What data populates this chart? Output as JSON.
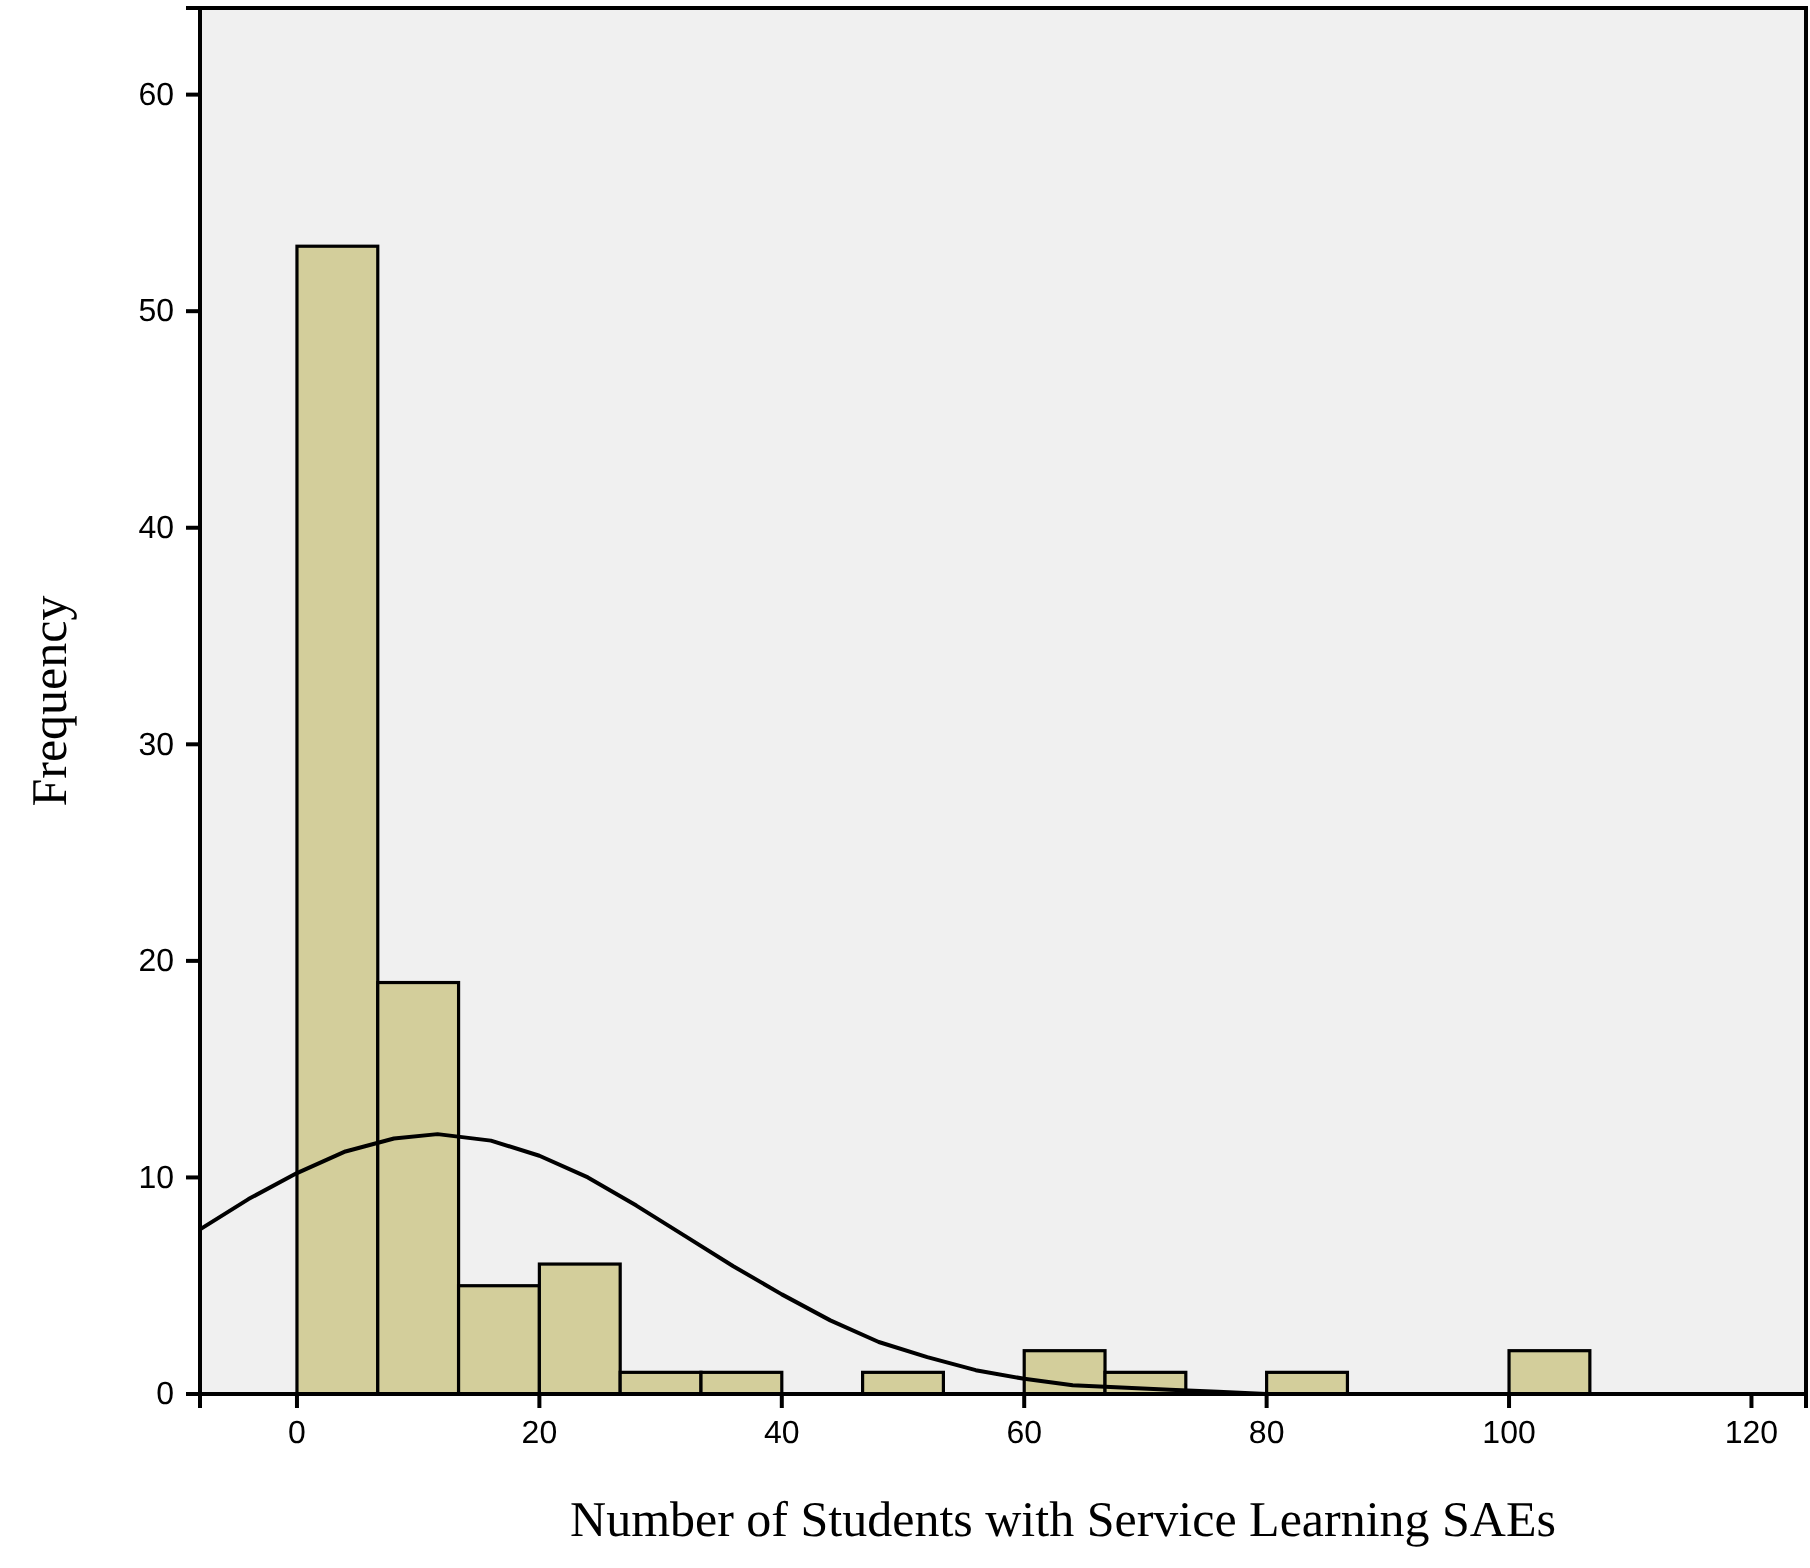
{
  "chart_data": {
    "type": "histogram",
    "xlabel": "Number of Students with Service Learning SAEs",
    "ylabel": "Frequency",
    "bins": [
      0,
      6.667,
      13.333,
      20,
      26.667,
      33.333,
      40,
      46.667,
      53.333,
      60,
      66.667,
      73.333,
      80,
      86.667,
      93.333,
      100,
      106.667
    ],
    "values": [
      53,
      19,
      5,
      6,
      1,
      1,
      0,
      1,
      0,
      2,
      1,
      0,
      1,
      0,
      0,
      2
    ],
    "color": "#d3ce9b",
    "series": [
      {
        "type": "line",
        "color": "#000000",
        "x": [
          -8,
          -4,
          0,
          4,
          8,
          11.6,
          16,
          20,
          24,
          28,
          32,
          36,
          40,
          44,
          48,
          52,
          56,
          60,
          64,
          68,
          72,
          76,
          80,
          84,
          88,
          100,
          124.5
        ],
        "values": [
          7.6,
          9,
          10.2,
          11.2,
          11.8,
          12,
          11.7,
          11,
          10,
          8.7,
          7.3,
          5.9,
          4.6,
          3.4,
          2.4,
          1.7,
          1.1,
          0.7,
          0.4,
          0.3,
          0.2,
          0.1,
          0,
          0,
          0,
          0,
          0
        ]
      }
    ],
    "xlim": [
      -8,
      124.5
    ],
    "ylim": [
      0,
      64
    ],
    "xticks": [
      0,
      20,
      40,
      60,
      80,
      100,
      120
    ],
    "yticks": [
      0,
      10,
      20,
      30,
      40,
      50,
      60
    ],
    "grid": false,
    "marker": "none",
    "line_style": "solid"
  }
}
